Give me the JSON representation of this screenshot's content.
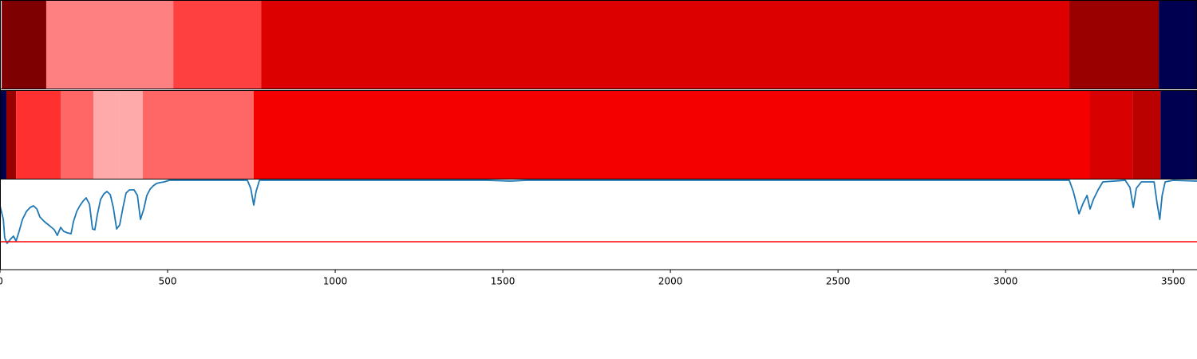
{
  "chart_data": {
    "type": "line",
    "xlim": [
      0,
      3571
    ],
    "xticks": [
      0,
      500,
      1000,
      1500,
      2000,
      2500,
      3000,
      3500
    ],
    "ylim": [
      0,
      3.38
    ],
    "x": [
      0,
      10,
      14,
      21,
      31,
      40,
      48,
      57,
      67,
      79,
      90,
      100,
      110,
      119,
      133,
      148,
      162,
      171,
      181,
      190,
      202,
      212,
      219,
      229,
      238,
      248,
      257,
      267,
      276,
      283,
      290,
      300,
      310,
      319,
      329,
      338,
      348,
      357,
      367,
      376,
      386,
      400,
      410,
      419,
      429,
      438,
      448,
      457,
      467,
      476,
      490,
      505,
      524,
      738,
      748,
      757,
      764,
      774,
      1452,
      1524,
      1571,
      3190,
      3202,
      3219,
      3231,
      3243,
      3252,
      3262,
      3276,
      3290,
      3357,
      3371,
      3381,
      3390,
      3405,
      3443,
      3452,
      3460,
      3467,
      3476,
      3500,
      3571
    ],
    "series": [
      {
        "color": "#1f77b4",
        "values": [
          0.8,
          0.63,
          0.4,
          0.33,
          0.38,
          0.42,
          0.36,
          0.48,
          0.63,
          0.73,
          0.78,
          0.8,
          0.76,
          0.66,
          0.6,
          0.55,
          0.5,
          0.43,
          0.53,
          0.48,
          0.46,
          0.45,
          0.6,
          0.73,
          0.8,
          0.86,
          0.9,
          0.82,
          0.51,
          0.5,
          0.68,
          0.88,
          0.95,
          0.98,
          0.94,
          0.78,
          0.51,
          0.56,
          0.78,
          0.96,
          1.0,
          1.0,
          0.93,
          0.63,
          0.76,
          0.93,
          1.01,
          1.05,
          1.08,
          1.09,
          1.1,
          1.12,
          1.12,
          1.12,
          1.02,
          0.81,
          0.98,
          1.12,
          1.12,
          1.11,
          1.12,
          1.12,
          0.98,
          0.7,
          0.83,
          0.93,
          0.76,
          0.88,
          1.0,
          1.1,
          1.12,
          1.03,
          0.78,
          1.02,
          1.1,
          1.1,
          0.83,
          0.63,
          0.93,
          1.1,
          1.12,
          1.11
        ]
      }
    ],
    "hline": {
      "value": 0.35,
      "color": "#ff0000"
    },
    "bands": [
      {
        "segments": [
          {
            "start": 5,
            "end": 138,
            "color": "#7f0000"
          },
          {
            "start": 138,
            "end": 517,
            "color": "#ff8080"
          },
          {
            "start": 517,
            "end": 779,
            "color": "#ff4040"
          },
          {
            "start": 779,
            "end": 3190,
            "color": "#dd0000"
          },
          {
            "start": 3190,
            "end": 3457,
            "color": "#9a0000"
          },
          {
            "start": 3457,
            "end": 3571,
            "color": "#000050"
          }
        ]
      },
      {
        "segments": [
          {
            "start": 0,
            "end": 19,
            "color": "#000050"
          },
          {
            "start": 19,
            "end": 48,
            "color": "#990000"
          },
          {
            "start": 48,
            "end": 181,
            "color": "#ff3030"
          },
          {
            "start": 181,
            "end": 279,
            "color": "#ff6666"
          },
          {
            "start": 279,
            "end": 357,
            "color": "#ffaaaa"
          },
          {
            "start": 357,
            "end": 426,
            "color": "#ffaaaa"
          },
          {
            "start": 426,
            "end": 757,
            "color": "#ff6666"
          },
          {
            "start": 757,
            "end": 3252,
            "color": "#f50000"
          },
          {
            "start": 3252,
            "end": 3379,
            "color": "#d80000"
          },
          {
            "start": 3379,
            "end": 3462,
            "color": "#bb0000"
          },
          {
            "start": 3462,
            "end": 3571,
            "color": "#000050"
          }
        ]
      }
    ]
  }
}
